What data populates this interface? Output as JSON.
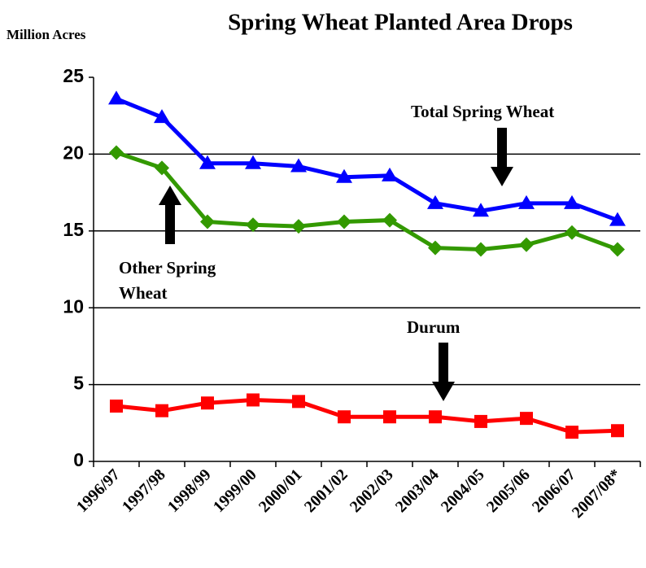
{
  "chart_data": {
    "type": "line",
    "title": "Spring Wheat Planted Area Drops",
    "y_label": "Million Acres",
    "categories": [
      "1996/97",
      "1997/98",
      "1998/99",
      "1999/00",
      "2000/01",
      "2001/02",
      "2002/03",
      "2003/04",
      "2004/05",
      "2005/06",
      "2006/07",
      "2007/08*"
    ],
    "series": [
      {
        "name": "Total Spring Wheat",
        "color": "#0000ff",
        "marker": "triangle",
        "values": [
          23.6,
          22.4,
          19.4,
          19.4,
          19.2,
          18.5,
          18.6,
          16.8,
          16.3,
          16.8,
          16.8,
          15.7
        ]
      },
      {
        "name": "Other Spring Wheat",
        "color": "#339900",
        "marker": "diamond",
        "values": [
          20.1,
          19.1,
          15.6,
          15.4,
          15.3,
          15.6,
          15.7,
          13.9,
          13.8,
          14.1,
          14.9,
          13.8
        ]
      },
      {
        "name": "Durum",
        "color": "#ff0000",
        "marker": "square",
        "values": [
          3.6,
          3.3,
          3.8,
          4.0,
          3.9,
          2.9,
          2.9,
          2.9,
          2.6,
          2.8,
          1.9,
          2.0
        ]
      }
    ],
    "ylim": [
      0,
      25
    ],
    "yticks": [
      0,
      5,
      10,
      15,
      20,
      25
    ],
    "grid": true
  }
}
